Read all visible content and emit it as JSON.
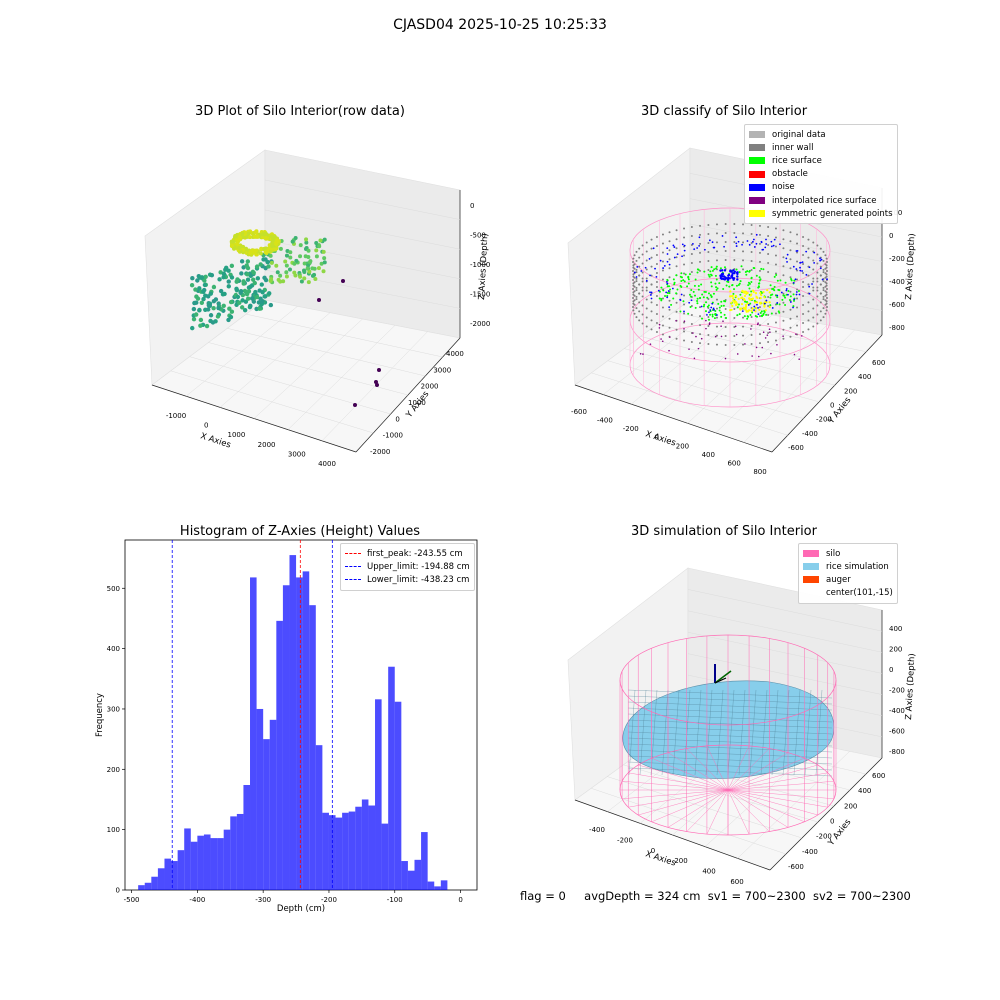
{
  "suptitle": "CJASD04 2025-10-25 10:25:33",
  "footer": {
    "flag": "flag = 0",
    "avg": "avgDepth = 324 cm",
    "sv1": "sv1 = 700~2300",
    "sv2": "sv2 = 700~2300"
  },
  "panels": {
    "p1": {
      "title": "3D Plot of Silo Interior(row data)",
      "xlabel": "X Axies",
      "ylabel": "Y Axies",
      "zlabel": "Z Axies (Depth)",
      "xticks": [
        "-1000",
        "0",
        "1000",
        "2000",
        "3000",
        "4000"
      ],
      "yticks": [
        "-2000",
        "-1000",
        "0",
        "1000",
        "2000",
        "3000",
        "4000"
      ],
      "zticks": [
        "0",
        "-500",
        "-1000",
        "-1500",
        "-2000"
      ]
    },
    "p2": {
      "title": "3D classify of Silo Interior",
      "xlabel": "X Axies",
      "ylabel": "Y Axies",
      "zlabel": "Z Axies (Depth)",
      "xticks": [
        "-600",
        "-400",
        "-200",
        "0",
        "200",
        "400",
        "600",
        "800"
      ],
      "yticks": [
        "-600",
        "-400",
        "-200",
        "0",
        "200",
        "400",
        "600"
      ],
      "zticks": [
        "200",
        "0",
        "-200",
        "-400",
        "-600",
        "-800"
      ],
      "legend": [
        {
          "label": "original data",
          "color": "#b3b3b3"
        },
        {
          "label": "inner wall",
          "color": "#808080"
        },
        {
          "label": "rice surface",
          "color": "#00ff00"
        },
        {
          "label": "obstacle",
          "color": "#ff0000"
        },
        {
          "label": "noise",
          "color": "#0000ff"
        },
        {
          "label": "interpolated rice surface",
          "color": "#800080"
        },
        {
          "label": "symmetric generated points",
          "color": "#ffff00"
        }
      ]
    },
    "p3": {
      "title": "Histogram of Z-Axies (Height) Values",
      "xlabel": "Depth (cm)",
      "ylabel": "Frequency",
      "legend": [
        {
          "label": "first_peak: -243.55 cm",
          "color": "#ff0000"
        },
        {
          "label": "Upper_limit: -194.88 cm",
          "color": "#0000ff"
        },
        {
          "label": "Lower_limit: -438.23 cm",
          "color": "#0000ff"
        }
      ]
    },
    "p4": {
      "title": "3D simulation of Silo Interior",
      "xlabel": "X Axies",
      "ylabel": "Y Axies",
      "zlabel": "Z Axies (Depth)",
      "xticks": [
        "-400",
        "-200",
        "0",
        "200",
        "400",
        "600"
      ],
      "yticks": [
        "-600",
        "-400",
        "-200",
        "0",
        "200",
        "400",
        "600"
      ],
      "zticks": [
        "400",
        "200",
        "0",
        "-200",
        "-400",
        "-600",
        "-800"
      ],
      "legend": [
        {
          "label": "silo",
          "color": "#ff69b4"
        },
        {
          "label": "rice simulation",
          "color": "#87ceeb"
        },
        {
          "label": "auger",
          "color": "#ff4500"
        },
        {
          "label": "center(101,-15)",
          "color": ""
        }
      ]
    }
  },
  "chart_data": [
    {
      "type": "scatter",
      "title": "3D Plot of Silo Interior(row data)",
      "xlabel": "X Axies",
      "ylabel": "Y Axies",
      "zlabel": "Z Axies (Depth)",
      "xlim": [
        -1600,
        4200
      ],
      "ylim": [
        -2200,
        4200
      ],
      "zlim": [
        -2300,
        0
      ]
    },
    {
      "type": "scatter",
      "title": "3D classify of Silo Interior",
      "xlim": [
        -650,
        850
      ],
      "ylim": [
        -700,
        700
      ],
      "zlim": [
        -900,
        300
      ]
    },
    {
      "type": "bar",
      "title": "Histogram of Z-Axies (Height) Values",
      "xlabel": "Depth (cm)",
      "ylabel": "Frequency",
      "xlim": [
        -510,
        25
      ],
      "ylim": [
        0,
        580
      ],
      "xticks": [
        -500,
        -400,
        -300,
        -200,
        -100,
        0
      ],
      "yticks": [
        0,
        100,
        200,
        300,
        400,
        500
      ],
      "bin_start": -490,
      "bin_width": 10,
      "values": [
        8,
        12,
        22,
        36,
        52,
        48,
        66,
        102,
        80,
        90,
        92,
        86,
        86,
        100,
        122,
        126,
        174,
        518,
        300,
        250,
        282,
        446,
        505,
        555,
        518,
        528,
        472,
        240,
        128,
        124,
        120,
        128,
        130,
        138,
        150,
        140,
        316,
        110,
        370,
        312,
        48,
        32,
        50,
        96,
        14,
        6,
        16
      ],
      "vlines": [
        {
          "name": "first_peak",
          "x": -243.55,
          "color": "#ff0000"
        },
        {
          "name": "Upper_limit",
          "x": -194.88,
          "color": "#0000ff"
        },
        {
          "name": "Lower_limit",
          "x": -438.23,
          "color": "#0000ff"
        }
      ]
    },
    {
      "type": "area",
      "title": "3D simulation of Silo Interior",
      "xlim": [
        -500,
        750
      ],
      "ylim": [
        -700,
        700
      ],
      "zlim": [
        -900,
        450
      ]
    }
  ]
}
